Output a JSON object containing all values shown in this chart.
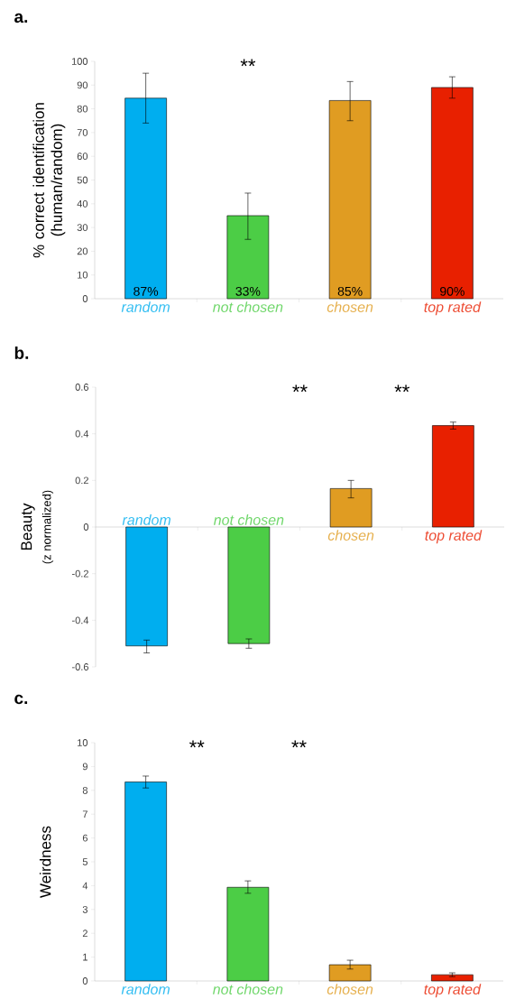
{
  "chart_data": [
    {
      "type": "bar",
      "title": "a.",
      "ylabel": "% correct identification (human/random)",
      "categories": [
        "random",
        "not chosen",
        "chosen",
        "top rated"
      ],
      "values": [
        84.5,
        35,
        83.5,
        89
      ],
      "colors": [
        "#00aeef",
        "#4ccd46",
        "#e09c22",
        "#e82000"
      ],
      "errors": [
        [
          74,
          95
        ],
        [
          25,
          44.5
        ],
        [
          75,
          91.5
        ],
        [
          84.5,
          93.5
        ]
      ],
      "ylim": [
        0,
        100
      ],
      "yticks": [
        0,
        10,
        20,
        30,
        40,
        50,
        60,
        70,
        80,
        90,
        100
      ],
      "annotations": [
        "**",
        {
          "text": "87%",
          "x": "random",
          "y": 0
        },
        {
          "text": "33%",
          "x": "not chosen",
          "y": 0
        },
        {
          "text": "85%",
          "x": "chosen",
          "y": 0
        },
        {
          "text": "90%",
          "x": "top rated",
          "y": 0
        }
      ]
    },
    {
      "type": "bar",
      "title": "b.",
      "ylabel": "Beauty",
      "categories": [
        "random",
        "not chosen",
        "chosen",
        "top rated"
      ],
      "values": [
        -0.51,
        -0.5,
        0.165,
        0.435
      ],
      "colors": [
        "#00aeef",
        "#4ccd46",
        "#e09c22",
        "#e82000"
      ],
      "errors": [
        [
          -0.54,
          -0.485
        ],
        [
          -0.52,
          -0.48
        ],
        [
          0.125,
          0.2
        ],
        [
          0.42,
          0.45
        ]
      ],
      "ylim": [
        -0.6,
        0.6
      ],
      "yticks": [
        -0.6,
        -0.4,
        -0.2,
        0,
        0.2,
        0.4,
        0.6
      ],
      "annotations": [
        "(z normalized)",
        "**",
        "**"
      ]
    },
    {
      "type": "bar",
      "title": "c.",
      "ylabel": "Weirdness",
      "categories": [
        "random",
        "not chosen",
        "chosen",
        "top rated"
      ],
      "values": [
        8.35,
        3.93,
        0.68,
        0.26
      ],
      "colors": [
        "#00aeef",
        "#4ccd46",
        "#e09c22",
        "#e82000"
      ],
      "errors": [
        [
          8.1,
          8.6
        ],
        [
          3.68,
          4.2
        ],
        [
          0.5,
          0.87
        ],
        [
          0.18,
          0.34
        ]
      ],
      "ylim": [
        0,
        10
      ],
      "yticks": [
        0,
        1,
        2,
        3,
        4,
        5,
        6,
        7,
        8,
        9,
        10
      ],
      "annotations": [
        "**",
        "**"
      ]
    }
  ]
}
